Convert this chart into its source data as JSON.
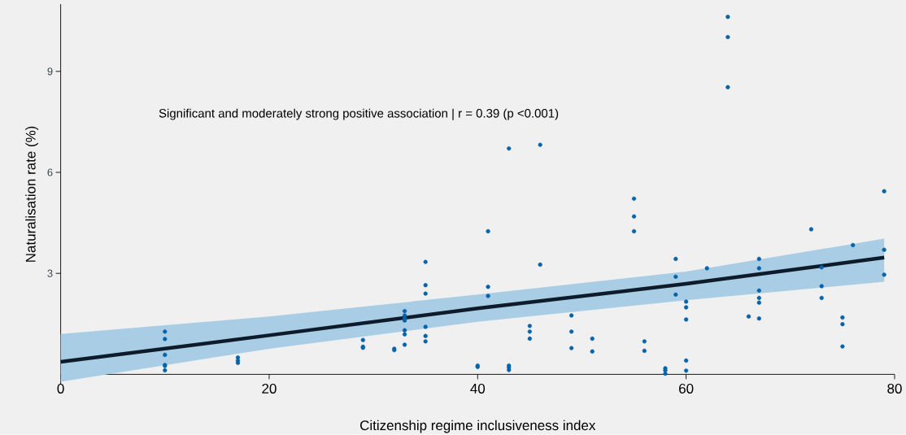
{
  "chart_data": {
    "type": "scatter",
    "annotations": [
      "Significant and moderately strong positive association | r = 0.39 (p <0.001)"
    ],
    "xlabel": "Citizenship regime inclusiveness index",
    "ylabel": "Naturalisation rate (%)",
    "xlim": [
      0,
      80
    ],
    "xticks": [
      0,
      20,
      40,
      60,
      80
    ],
    "ylim": [
      -0.3,
      11
    ],
    "yticks": [
      3,
      6,
      9
    ],
    "series": [
      {
        "color": "#0563a8",
        "marker": "circle",
        "x": [
          10,
          10,
          10,
          10,
          10,
          10,
          17,
          17,
          17,
          29,
          29,
          29,
          32,
          32,
          33,
          33,
          33,
          33,
          33,
          33,
          33,
          35,
          35,
          35,
          35,
          35,
          35,
          40,
          40,
          41,
          41,
          41,
          43,
          43,
          43,
          43,
          45,
          45,
          45,
          46,
          46,
          49,
          49,
          49,
          51,
          51,
          55,
          55,
          55,
          56,
          56,
          58,
          58,
          58,
          59,
          59,
          59,
          60,
          60,
          60,
          60,
          60,
          62,
          64,
          64,
          64,
          66,
          67,
          67,
          67,
          67,
          67,
          67,
          72,
          73,
          73,
          73,
          75,
          75,
          75,
          76,
          79,
          79,
          79
        ],
        "values": [
          1.27,
          1.05,
          0.58,
          0.28,
          0.25,
          0.12,
          0.5,
          0.41,
          0.34,
          1.02,
          0.82,
          0.79,
          0.76,
          0.72,
          1.88,
          1.75,
          1.66,
          1.6,
          1.31,
          1.19,
          0.88,
          3.34,
          2.65,
          2.4,
          1.41,
          1.14,
          0.98,
          0.26,
          0.22,
          4.25,
          2.6,
          2.33,
          6.71,
          0.26,
          0.2,
          0.13,
          1.44,
          1.27,
          1.06,
          6.82,
          3.26,
          1.75,
          1.27,
          0.78,
          1.06,
          0.68,
          5.22,
          4.69,
          4.25,
          0.98,
          0.7,
          0.18,
          0.12,
          0.02,
          3.43,
          2.9,
          2.37,
          2.16,
          1.99,
          1.63,
          0.41,
          0.11,
          3.15,
          10.62,
          10.02,
          8.53,
          1.72,
          3.43,
          3.15,
          2.49,
          2.27,
          2.13,
          1.66,
          4.31,
          3.18,
          2.62,
          2.27,
          1.69,
          1.49,
          0.83,
          3.84,
          5.44,
          3.7,
          2.96
        ]
      },
      {
        "type": "line",
        "color": "#0d1b2a",
        "line_style": "solid",
        "marker": "none",
        "x": [
          0,
          20,
          40,
          60,
          79
        ],
        "values": [
          0.37,
          1.16,
          1.96,
          2.69,
          3.47
        ],
        "lower": [
          -0.22,
          0.76,
          1.56,
          2.2,
          2.75
        ],
        "upper": [
          1.2,
          1.72,
          2.37,
          3.05,
          4.03
        ]
      }
    ]
  }
}
